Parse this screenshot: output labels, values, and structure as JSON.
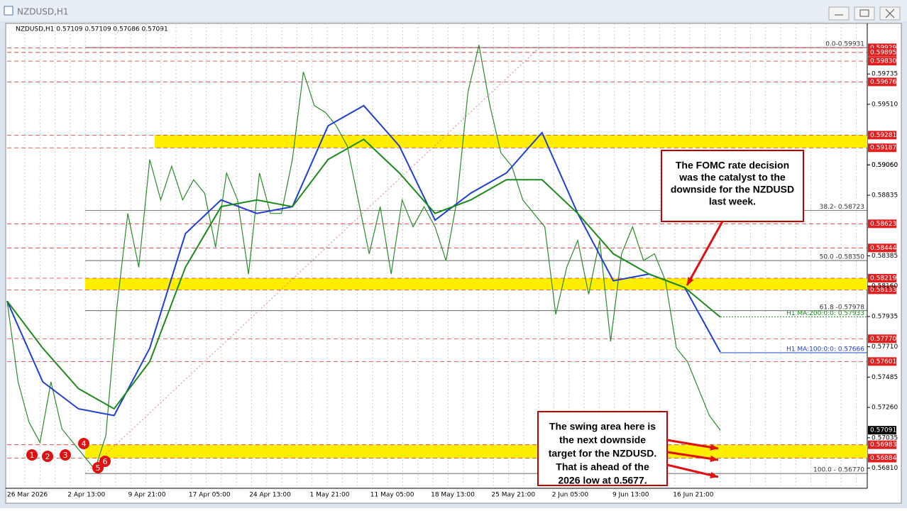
{
  "window": {
    "title": "NZDUSD,H1"
  },
  "chart": {
    "header": "NZDUSD,H1  0.57109 0.57109 0.57086 0.57091",
    "ylim": [
      0.5666,
      0.6011
    ],
    "price_axis": [
      "0.59060",
      "0.59735",
      "0.59510",
      "0.59060",
      "0.58835",
      "0.58385",
      "0.58160",
      "0.57935",
      "0.57710",
      "0.57485",
      "0.57260",
      "0.57035",
      "0.56810"
    ],
    "levels": [
      "0.59929",
      "0.59895",
      "0.59830",
      "0.59676",
      "0.59281",
      "0.59187",
      "0.58623",
      "0.58444",
      "0.58219",
      "0.58133",
      "0.57770",
      "0.57601",
      "0.56983",
      "0.56884"
    ],
    "current_price": "0.57091",
    "zones": [
      [
        0.59281,
        0.59187
      ],
      [
        0.58219,
        0.58133
      ],
      [
        0.56983,
        0.56884
      ]
    ],
    "fib_levels": [
      {
        "label": "0.0-0.59931",
        "value": 0.59931
      },
      {
        "label": "38.2- 0.58723",
        "value": 0.58723
      },
      {
        "label": "50.0 -0.58350",
        "value": 0.5835
      },
      {
        "label": "61.8 -0.57978",
        "value": 0.57978
      },
      {
        "label": "100.0 - 0.56770",
        "value": 0.5677
      }
    ],
    "ma_labels": [
      {
        "label": "H1 MA:200:0:0: 0.57933",
        "value": 0.57933,
        "color": "#1a8a1a"
      },
      {
        "label": "H1 MA:100:0:0: 0.57666",
        "value": 0.57666,
        "color": "#1f3fd0"
      }
    ],
    "x_labels": [
      "26 Mar 2026",
      "2 Apr 13:00",
      "9 Apr 21:00",
      "17 Apr 05:00",
      "24 Apr 13:00",
      "1 May 21:00",
      "11 May 05:00",
      "18 May 13:00",
      "25 May 21:00",
      "2 Jun 05:00",
      "9 Jun 13:00",
      "16 Jun 21:00"
    ],
    "price": {
      "color": "#2a8a2a",
      "values": [
        0.5805,
        0.5745,
        0.5715,
        0.57,
        0.5745,
        0.571,
        0.57,
        0.569,
        0.568,
        0.5705,
        0.58,
        0.587,
        0.583,
        0.591,
        0.588,
        0.5905,
        0.588,
        0.5895,
        0.5885,
        0.5845,
        0.59,
        0.588,
        0.5825,
        0.59,
        0.587,
        0.587,
        0.591,
        0.5975,
        0.595,
        0.5945,
        0.5935,
        0.592,
        0.588,
        0.584,
        0.5875,
        0.5825,
        0.588,
        0.586,
        0.5875,
        0.586,
        0.5835,
        0.588,
        0.596,
        0.5995,
        0.595,
        0.5915,
        0.5905,
        0.588,
        0.587,
        0.586,
        0.5795,
        0.583,
        0.585,
        0.581,
        0.585,
        0.5775,
        0.584,
        0.586,
        0.5835,
        0.584,
        0.582,
        0.577,
        0.576,
        0.574,
        0.572,
        0.5709
      ]
    },
    "ma100": {
      "color": "#1f3fd0",
      "values": [
        0.5805,
        0.5745,
        0.5725,
        0.572,
        0.577,
        0.5855,
        0.588,
        0.587,
        0.5875,
        0.5935,
        0.595,
        0.592,
        0.5865,
        0.5885,
        0.59,
        0.593,
        0.587,
        0.582,
        0.5825,
        0.5815,
        0.5767
      ]
    },
    "ma200": {
      "color": "#1a8a1a",
      "values": [
        0.5805,
        0.577,
        0.574,
        0.5725,
        0.576,
        0.583,
        0.5875,
        0.588,
        0.5875,
        0.591,
        0.5925,
        0.59,
        0.587,
        0.588,
        0.5895,
        0.5895,
        0.587,
        0.584,
        0.5825,
        0.5815,
        0.5793
      ]
    },
    "markers": [
      "1",
      "2",
      "3",
      "4",
      "5",
      "6"
    ],
    "annotations": [
      {
        "lines": [
          "The FOMC rate decision",
          "was the catalyst to the",
          "downside for the NZDUSD",
          "last week."
        ]
      },
      {
        "lines": [
          "The swing area here is",
          "the next downside",
          "target for the NZDUSD.",
          "That is ahead of the",
          "2026 low at 0.5677."
        ]
      }
    ]
  }
}
